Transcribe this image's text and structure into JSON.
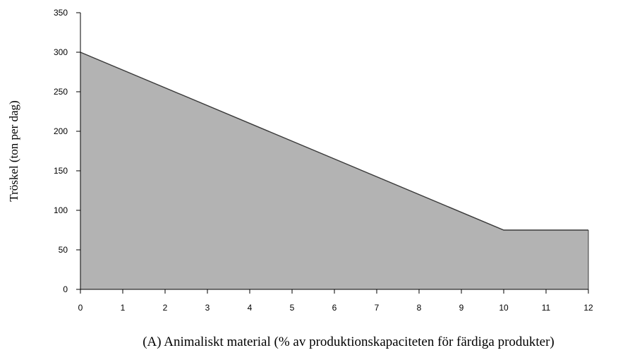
{
  "chart_data": {
    "type": "area",
    "title": "",
    "xlabel": "(A) Animaliskt material (% av produktionskapaciteten för färdiga produkter)",
    "ylabel": "Tröskel (ton per dag)",
    "xlim": [
      0,
      12
    ],
    "ylim": [
      0,
      350
    ],
    "xticks": [
      0,
      1,
      2,
      3,
      4,
      5,
      6,
      7,
      8,
      9,
      10,
      11,
      12
    ],
    "yticks": [
      0,
      50,
      100,
      150,
      200,
      250,
      300,
      350
    ],
    "grid": false,
    "legend": "none",
    "fill_color": "#b3b3b3",
    "line_color": "#3a3a3a",
    "series": [
      {
        "x": [
          0,
          10,
          12
        ],
        "y": [
          300,
          75,
          75
        ]
      }
    ]
  }
}
